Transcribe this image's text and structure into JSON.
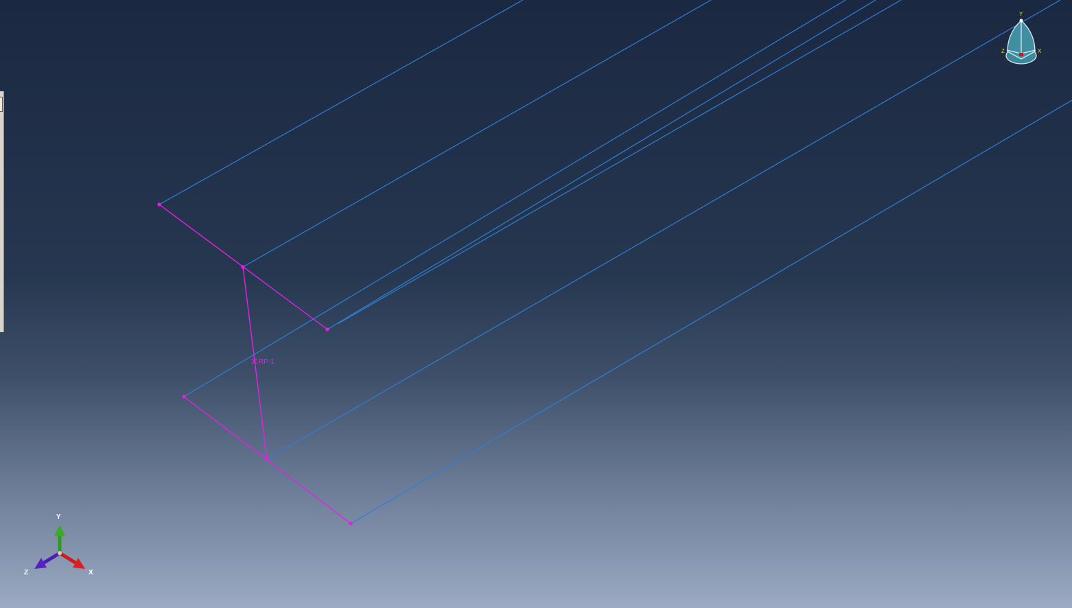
{
  "viewport": {
    "reference_point_label": "RP-1"
  },
  "triad": {
    "x_label": "X",
    "y_label": "Y",
    "z_label": "Z"
  },
  "view_cube": {
    "x_label": "X",
    "y_label": "Y",
    "z_label": "Z"
  },
  "colors": {
    "wire": "#2f7fd6",
    "section": "#e520e5",
    "triad_x": "#d01a1a",
    "triad_y": "#2f9a1f",
    "triad_z": "#4a1fb0",
    "axis_label": "#ffffff",
    "cube_label": "#e8e000"
  },
  "icons": {
    "view_cube": "view-cube-icon",
    "triad": "coordinate-triad-icon"
  }
}
